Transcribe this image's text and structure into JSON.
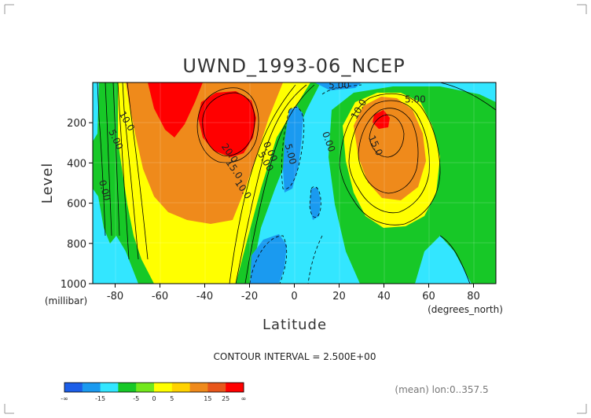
{
  "chart_data": {
    "type": "heatmap",
    "title": "UWND_1993-06_NCEP",
    "xlabel": "Latitude",
    "ylabel": "Level",
    "x_units": "(degrees_north)",
    "y_units": "(millibar)",
    "xlim": [
      -90,
      90
    ],
    "ylim": [
      1000,
      0
    ],
    "x_ticks": [
      -80,
      -60,
      -40,
      -20,
      0,
      20,
      40,
      60,
      80
    ],
    "x_tick_labels": [
      "-80",
      "-60",
      "-40",
      "-20",
      "0",
      "20",
      "40",
      "60",
      "80"
    ],
    "y_ticks": [
      200,
      400,
      600,
      800,
      1000
    ],
    "y_tick_labels": [
      "200",
      "400",
      "600",
      "800",
      "1000"
    ],
    "footer_text": "CONTOUR INTERVAL = 2.500E+00",
    "note": "(mean) lon:0..357.5",
    "colorbar": {
      "colors": [
        "#1c5ee8",
        "#1a9af0",
        "#33e6ff",
        "#17c827",
        "#72e81c",
        "#ffff00",
        "#ffd200",
        "#ef8a1b",
        "#e8561b",
        "#ff0000"
      ],
      "tick_labels": [
        "-∞",
        "-15",
        "-5",
        "0",
        "5",
        "15",
        "25",
        "∞"
      ]
    },
    "contour_labels": [
      {
        "text": "10.0",
        "lat": -76,
        "lev": 200,
        "rot": 60
      },
      {
        "text": "5.00",
        "lat": -81,
        "lev": 290,
        "rot": 65
      },
      {
        "text": "0.00",
        "lat": -86,
        "lev": 540,
        "rot": 75
      },
      {
        "text": "20.0",
        "lat": -30,
        "lev": 360,
        "rot": 55
      },
      {
        "text": "15.0",
        "lat": -28,
        "lev": 440,
        "rot": 55
      },
      {
        "text": "10.0",
        "lat": -24,
        "lev": 540,
        "rot": 55
      },
      {
        "text": "5.00",
        "lat": -14,
        "lev": 400,
        "rot": 60
      },
      {
        "text": "0.00",
        "lat": -12,
        "lev": 350,
        "rot": 65
      },
      {
        "text": "5.00",
        "lat": -3,
        "lev": 360,
        "rot": 75
      },
      {
        "text": "0.00",
        "lat": 14,
        "lev": 300,
        "rot": 70
      },
      {
        "text": "5.00",
        "lat": 20,
        "lev": 30,
        "rot": 0
      },
      {
        "text": "10.0",
        "lat": 30,
        "lev": 140,
        "rot": -60
      },
      {
        "text": "15.0",
        "lat": 35,
        "lev": 320,
        "rot": 65
      },
      {
        "text": "5.00",
        "lat": 54,
        "lev": 100,
        "rot": 0
      }
    ]
  }
}
